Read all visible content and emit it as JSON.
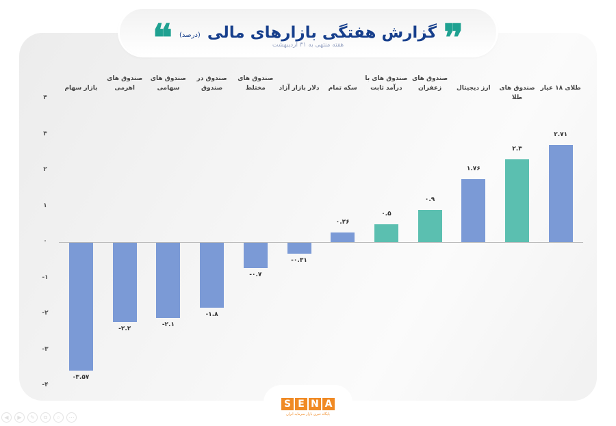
{
  "header": {
    "title": "گزارش هفتگی بازارهای مالی",
    "unit": "(درصد)",
    "subtitle": "هفته منتهی به ۳۱ اردیبهشت",
    "open_quote": "❝",
    "close_quote": "❞"
  },
  "colors": {
    "blue_bar": "#7b9ad6",
    "teal_bar": "#5bbfb0",
    "title": "#173f8c",
    "quote": "#1fa191",
    "logo": "#f08a24"
  },
  "y_ticks": [
    "۴",
    "۳",
    "۲",
    "۱",
    "۰",
    "-۱",
    "-۲",
    "-۳",
    "-۴"
  ],
  "chart_data": {
    "type": "bar",
    "title": "گزارش هفتگی بازارهای مالی (درصد)",
    "subtitle": "هفته منتهی به ۳۱ اردیبهشت",
    "xlabel": "",
    "ylabel": "درصد",
    "ylim": [
      -4,
      4
    ],
    "yticks": [
      4,
      3,
      2,
      1,
      0,
      -1,
      -2,
      -3,
      -4
    ],
    "grid": false,
    "legend": "none",
    "categories": [
      "بازار سهام",
      "صندوق های اهرمی",
      "صندوق های سهامی",
      "صندوق در صندوق",
      "صندوق های مختلط",
      "دلار بازار آزاد",
      "سکه تمام",
      "صندوق های با درآمد ثابت",
      "صندوق های زعفران",
      "ارز دیجیتال",
      "صندوق های طلا",
      "طلای ۱۸ عیار"
    ],
    "values": [
      -3.57,
      -2.2,
      -2.1,
      -1.8,
      -0.7,
      -0.31,
      0.26,
      0.5,
      0.9,
      1.76,
      2.3,
      2.71
    ],
    "bar_colors": [
      "blue",
      "blue",
      "blue",
      "blue",
      "blue",
      "blue",
      "blue",
      "teal",
      "teal",
      "blue",
      "teal",
      "blue"
    ]
  },
  "bars": [
    {
      "label": "بازار سهام",
      "value_text": "-۳.۵۷"
    },
    {
      "label": "صندوق های\nاهرمی",
      "value_text": "-۲.۲"
    },
    {
      "label": "صندوق های\nسهامی",
      "value_text": "-۲.۱"
    },
    {
      "label": "صندوق در\nصندوق",
      "value_text": "-۱.۸"
    },
    {
      "label": "صندوق های\nمختلط",
      "value_text": "-۰.۷"
    },
    {
      "label": "دلار بازار آزاد",
      "value_text": "-۰.۳۱"
    },
    {
      "label": "سکه تمام",
      "value_text": "۰.۲۶"
    },
    {
      "label": "صندوق های با\nدرآمد ثابت",
      "value_text": "۰.۵"
    },
    {
      "label": "صندوق های\nزعفران",
      "value_text": "۰.۹"
    },
    {
      "label": "ارز دیجیتال",
      "value_text": "۱.۷۶"
    },
    {
      "label": "صندوق های طلا",
      "value_text": "۲.۳"
    },
    {
      "label": "طلای ۱۸ عیار",
      "value_text": "۲.۷۱"
    }
  ],
  "logo": {
    "letters": [
      "S",
      "E",
      "N",
      "A"
    ],
    "tagline": "پایگاه خبری بازار سرمایه ایران"
  },
  "viewer_tools": [
    "◀",
    "▶",
    "✎",
    "⧉",
    "⌕",
    "⋯"
  ]
}
